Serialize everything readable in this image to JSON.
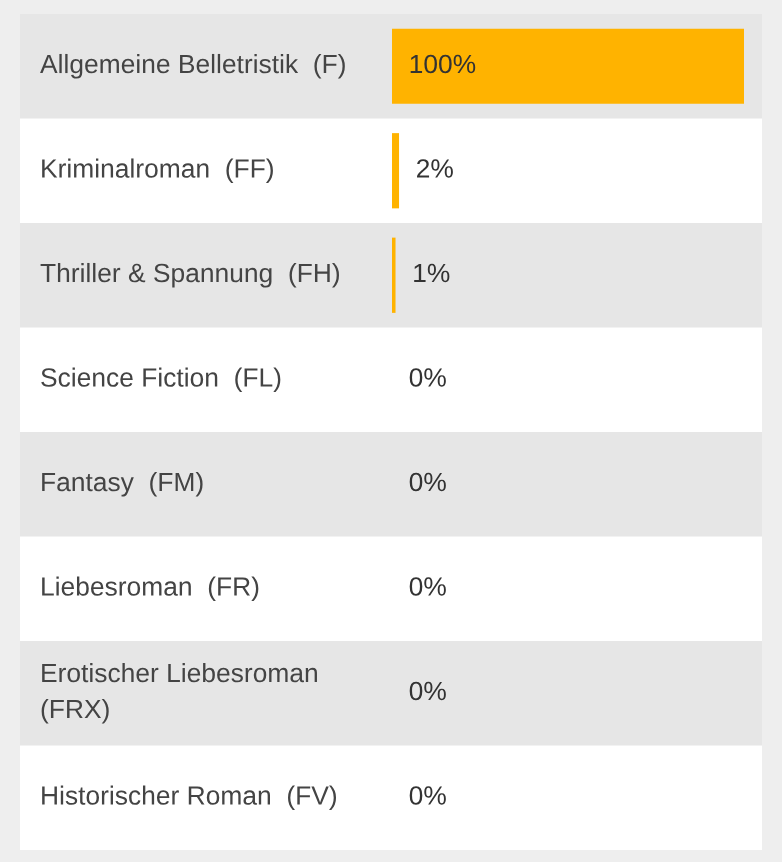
{
  "chart_data": {
    "type": "bar",
    "orientation": "horizontal",
    "categories": [
      "Allgemeine Belletristik  (F)",
      "Kriminalroman  (FF)",
      "Thriller & Spannung  (FH)",
      "Science Fiction  (FL)",
      "Fantasy  (FM)",
      "Liebesroman  (FR)",
      "Erotischer Liebesroman\n(FRX)",
      "Historischer Roman  (FV)"
    ],
    "values": [
      100,
      2,
      1,
      0,
      0,
      0,
      0,
      0
    ],
    "value_labels": [
      "100%",
      "2%",
      "1%",
      "0%",
      "0%",
      "0%",
      "0%",
      "0%"
    ],
    "color": "#ffb300"
  }
}
